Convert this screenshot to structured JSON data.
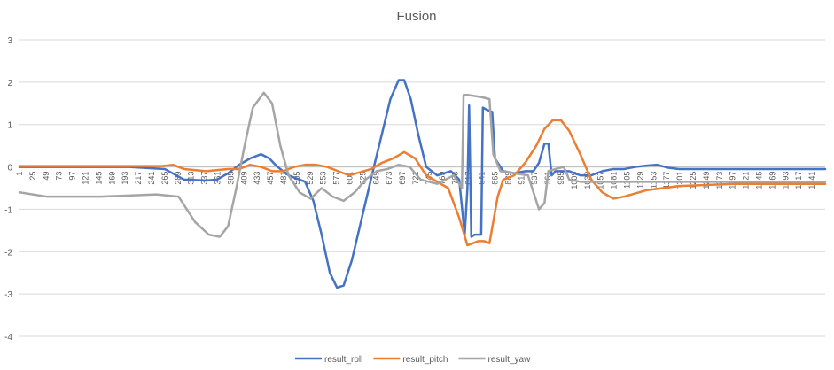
{
  "chart_data": {
    "type": "line",
    "title": "Fusion",
    "xlabel": "",
    "ylabel": "",
    "ylim": [
      -4,
      3
    ],
    "yticks": [
      3,
      2,
      1,
      0,
      -1,
      -2,
      -3,
      -4
    ],
    "xlim": [
      1,
      1465
    ],
    "x_tick_labels": [
      1,
      25,
      49,
      73,
      97,
      121,
      145,
      169,
      193,
      217,
      241,
      265,
      289,
      313,
      337,
      361,
      385,
      409,
      433,
      457,
      481,
      505,
      529,
      553,
      577,
      601,
      625,
      649,
      673,
      697,
      721,
      745,
      769,
      793,
      817,
      841,
      865,
      889,
      913,
      937,
      961,
      985,
      1009,
      1033,
      1057,
      1081,
      1105,
      1129,
      1153,
      1177,
      1201,
      1225,
      1249,
      1273,
      1297,
      1321,
      1345,
      1369,
      1393,
      1417,
      1441
    ],
    "grid": true,
    "legend_position": "bottom",
    "series": [
      {
        "name": "result_roll",
        "color": "#4472C4",
        "points": [
          [
            1,
            0
          ],
          [
            200,
            0
          ],
          [
            265,
            -0.05
          ],
          [
            300,
            -0.3
          ],
          [
            340,
            -0.32
          ],
          [
            360,
            -0.3
          ],
          [
            380,
            -0.15
          ],
          [
            400,
            0.05
          ],
          [
            420,
            0.2
          ],
          [
            440,
            0.3
          ],
          [
            455,
            0.2
          ],
          [
            470,
            0
          ],
          [
            490,
            -0.2
          ],
          [
            510,
            -0.3
          ],
          [
            520,
            -0.35
          ],
          [
            535,
            -0.8
          ],
          [
            550,
            -1.6
          ],
          [
            565,
            -2.5
          ],
          [
            578,
            -2.85
          ],
          [
            590,
            -2.8
          ],
          [
            605,
            -2.2
          ],
          [
            625,
            -1.1
          ],
          [
            645,
            0
          ],
          [
            660,
            0.8
          ],
          [
            675,
            1.6
          ],
          [
            690,
            2.05
          ],
          [
            700,
            2.05
          ],
          [
            712,
            1.6
          ],
          [
            725,
            0.8
          ],
          [
            740,
            0
          ],
          [
            760,
            -0.2
          ],
          [
            785,
            -0.1
          ],
          [
            800,
            -0.3
          ],
          [
            810,
            -1.6
          ],
          [
            815,
            -0.5
          ],
          [
            818,
            1.45
          ],
          [
            822,
            -1.65
          ],
          [
            828,
            -1.6
          ],
          [
            835,
            -1.6
          ],
          [
            840,
            -1.6
          ],
          [
            843,
            1.4
          ],
          [
            850,
            1.35
          ],
          [
            860,
            1.3
          ],
          [
            865,
            0.2
          ],
          [
            880,
            -0.1
          ],
          [
            900,
            -0.15
          ],
          [
            920,
            -0.1
          ],
          [
            935,
            -0.1
          ],
          [
            945,
            0.1
          ],
          [
            955,
            0.55
          ],
          [
            962,
            0.55
          ],
          [
            968,
            -0.2
          ],
          [
            975,
            -0.1
          ],
          [
            1000,
            -0.1
          ],
          [
            1020,
            -0.2
          ],
          [
            1040,
            -0.2
          ],
          [
            1060,
            -0.1
          ],
          [
            1080,
            -0.05
          ],
          [
            1100,
            -0.05
          ],
          [
            1120,
            0
          ],
          [
            1140,
            0.03
          ],
          [
            1160,
            0.05
          ],
          [
            1180,
            -0.02
          ],
          [
            1200,
            -0.05
          ],
          [
            1300,
            -0.05
          ],
          [
            1465,
            -0.05
          ]
        ]
      },
      {
        "name": "result_pitch",
        "color": "#ED7D31",
        "points": [
          [
            1,
            0.02
          ],
          [
            260,
            0.02
          ],
          [
            280,
            0.05
          ],
          [
            300,
            -0.05
          ],
          [
            340,
            -0.1
          ],
          [
            380,
            -0.05
          ],
          [
            400,
            -0.05
          ],
          [
            420,
            0.05
          ],
          [
            440,
            0
          ],
          [
            460,
            -0.1
          ],
          [
            480,
            -0.1
          ],
          [
            500,
            0
          ],
          [
            520,
            0.05
          ],
          [
            540,
            0.05
          ],
          [
            560,
            0
          ],
          [
            600,
            -0.2
          ],
          [
            640,
            -0.05
          ],
          [
            660,
            0.1
          ],
          [
            680,
            0.2
          ],
          [
            700,
            0.35
          ],
          [
            720,
            0.2
          ],
          [
            740,
            -0.2
          ],
          [
            780,
            -0.5
          ],
          [
            800,
            -1.2
          ],
          [
            815,
            -1.85
          ],
          [
            825,
            -1.8
          ],
          [
            835,
            -1.75
          ],
          [
            845,
            -1.75
          ],
          [
            855,
            -1.8
          ],
          [
            870,
            -0.7
          ],
          [
            880,
            -0.3
          ],
          [
            900,
            -0.2
          ],
          [
            920,
            0.1
          ],
          [
            940,
            0.5
          ],
          [
            955,
            0.9
          ],
          [
            970,
            1.1
          ],
          [
            985,
            1.1
          ],
          [
            1000,
            0.85
          ],
          [
            1020,
            0.3
          ],
          [
            1040,
            -0.3
          ],
          [
            1060,
            -0.6
          ],
          [
            1080,
            -0.75
          ],
          [
            1100,
            -0.7
          ],
          [
            1140,
            -0.55
          ],
          [
            1200,
            -0.45
          ],
          [
            1300,
            -0.4
          ],
          [
            1465,
            -0.4
          ]
        ]
      },
      {
        "name": "result_yaw",
        "color": "#A5A5A5",
        "points": [
          [
            1,
            -0.6
          ],
          [
            50,
            -0.7
          ],
          [
            150,
            -0.7
          ],
          [
            250,
            -0.65
          ],
          [
            290,
            -0.7
          ],
          [
            320,
            -1.3
          ],
          [
            345,
            -1.6
          ],
          [
            365,
            -1.65
          ],
          [
            380,
            -1.4
          ],
          [
            395,
            -0.5
          ],
          [
            410,
            0.5
          ],
          [
            425,
            1.4
          ],
          [
            445,
            1.75
          ],
          [
            460,
            1.5
          ],
          [
            475,
            0.5
          ],
          [
            490,
            -0.2
          ],
          [
            510,
            -0.6
          ],
          [
            530,
            -0.75
          ],
          [
            550,
            -0.5
          ],
          [
            570,
            -0.7
          ],
          [
            590,
            -0.8
          ],
          [
            610,
            -0.6
          ],
          [
            630,
            -0.3
          ],
          [
            650,
            -0.1
          ],
          [
            670,
            -0.05
          ],
          [
            690,
            0.05
          ],
          [
            710,
            0
          ],
          [
            730,
            -0.3
          ],
          [
            760,
            -0.4
          ],
          [
            790,
            -0.2
          ],
          [
            805,
            -0.5
          ],
          [
            808,
            1.7
          ],
          [
            815,
            1.7
          ],
          [
            840,
            1.65
          ],
          [
            855,
            1.6
          ],
          [
            862,
            0.3
          ],
          [
            875,
            -0.1
          ],
          [
            900,
            -0.15
          ],
          [
            925,
            -0.2
          ],
          [
            945,
            -1
          ],
          [
            955,
            -0.85
          ],
          [
            962,
            -0.1
          ],
          [
            975,
            -0.05
          ],
          [
            990,
            0
          ],
          [
            1000,
            -0.3
          ],
          [
            1020,
            -0.35
          ],
          [
            1100,
            -0.35
          ],
          [
            1200,
            -0.35
          ],
          [
            1300,
            -0.35
          ],
          [
            1465,
            -0.35
          ]
        ]
      }
    ]
  }
}
